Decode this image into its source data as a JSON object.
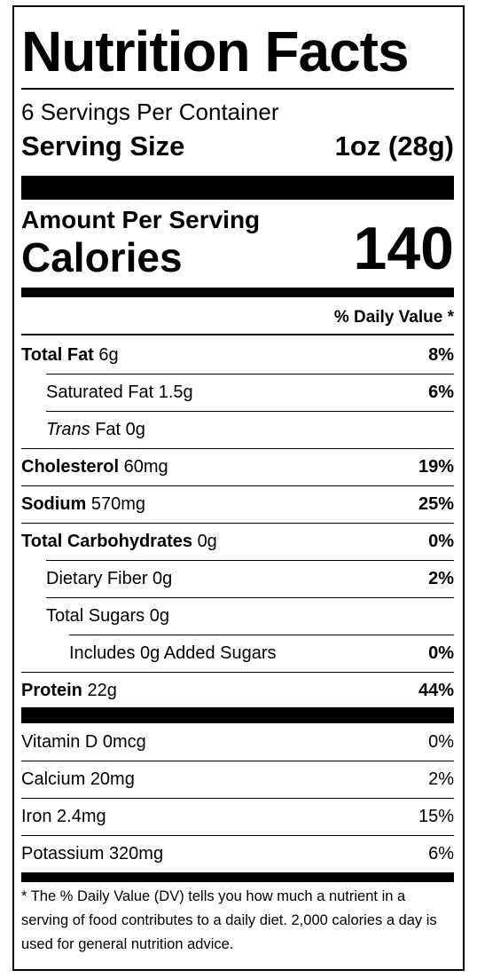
{
  "header": {
    "title": "Nutrition Facts",
    "servings": "6 Servings Per Container",
    "serving_size_label": "Serving Size",
    "serving_size_value": "1oz (28g)"
  },
  "calories": {
    "amount_label": "Amount Per Serving",
    "label": "Calories",
    "value": "140"
  },
  "daily_value_heading": "% Daily Value *",
  "nutrients": [
    {
      "name": "Total Fat",
      "amount": "6g",
      "dv": "8%"
    },
    {
      "name": "Saturated Fat",
      "amount": "1.5g",
      "dv": "6%"
    },
    {
      "prefix": "Trans",
      "name": "Fat",
      "amount": "0g"
    },
    {
      "name": "Cholesterol",
      "amount": "60mg",
      "dv": "19%"
    },
    {
      "name": "Sodium",
      "amount": "570mg",
      "dv": "25%"
    },
    {
      "name": "Total Carbohydrates",
      "amount": "0g",
      "dv": "0%"
    },
    {
      "name": "Dietary Fiber",
      "amount": "0g",
      "dv": "2%"
    },
    {
      "name": "Total Sugars",
      "amount": "0g"
    },
    {
      "name": "Includes 0g Added Sugars",
      "dv": "0%"
    },
    {
      "name": "Protein",
      "amount": "22g",
      "dv": "44%"
    }
  ],
  "vitamins": [
    {
      "name": "Vitamin D",
      "amount": "0mcg",
      "dv": "0%"
    },
    {
      "name": "Calcium",
      "amount": "20mg",
      "dv": "2%"
    },
    {
      "name": "Iron",
      "amount": "2.4mg",
      "dv": "15%"
    },
    {
      "name": "Potassium",
      "amount": "320mg",
      "dv": "6%"
    }
  ],
  "footnote": "* The % Daily Value (DV) tells you how much a nutrient in a serving of food contributes to a daily diet. 2,000 calories a day is used for general nutrition advice."
}
